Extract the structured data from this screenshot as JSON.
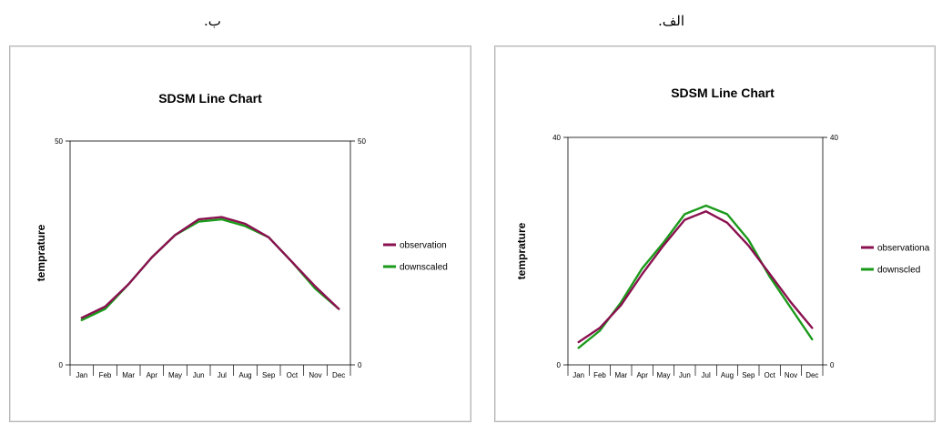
{
  "captions": {
    "left": "ب.",
    "right": "الف."
  },
  "colors": {
    "observation": "#8a1050",
    "downscaled": "#1a9a1a"
  },
  "chart_data": [
    {
      "type": "line",
      "title": "SDSM Line Chart",
      "ylabel": "temprature",
      "categories": [
        "Jan",
        "Feb",
        "Mar",
        "Apr",
        "May",
        "Jun",
        "Jul",
        "Aug",
        "Sep",
        "Oct",
        "Nov",
        "Dec"
      ],
      "ylim": [
        0,
        50
      ],
      "ytick_left": [
        "50",
        "0"
      ],
      "ytick_right": [
        "50",
        "0"
      ],
      "series": [
        {
          "name": "observation",
          "values": [
            10.5,
            13,
            18,
            24,
            29,
            32.5,
            33,
            31.5,
            28.5,
            23,
            17.5,
            12.5
          ]
        },
        {
          "name": "downscaled",
          "values": [
            10,
            12.5,
            18,
            24,
            29,
            32,
            32.5,
            31,
            28.5,
            23,
            17,
            12.5
          ]
        }
      ]
    },
    {
      "type": "line",
      "title": "SDSM Line Chart",
      "ylabel": "temprature",
      "categories": [
        "Jan",
        "Feb",
        "Mar",
        "Apr",
        "May",
        "Jun",
        "Jul",
        "Aug",
        "Sep",
        "Oct",
        "Nov",
        "Dec"
      ],
      "ylim": [
        0,
        40
      ],
      "ytick_left": [
        "40",
        "0"
      ],
      "ytick_right": [
        "40",
        "0"
      ],
      "series": [
        {
          "name": "observationa",
          "values": [
            4,
            6.5,
            10.5,
            16,
            21,
            25.5,
            27,
            25,
            21,
            16,
            11,
            6.5
          ]
        },
        {
          "name": "downscled",
          "values": [
            3,
            6,
            11,
            17,
            21.5,
            26.5,
            28,
            26.5,
            22,
            15.5,
            10,
            4.5
          ]
        }
      ]
    }
  ]
}
